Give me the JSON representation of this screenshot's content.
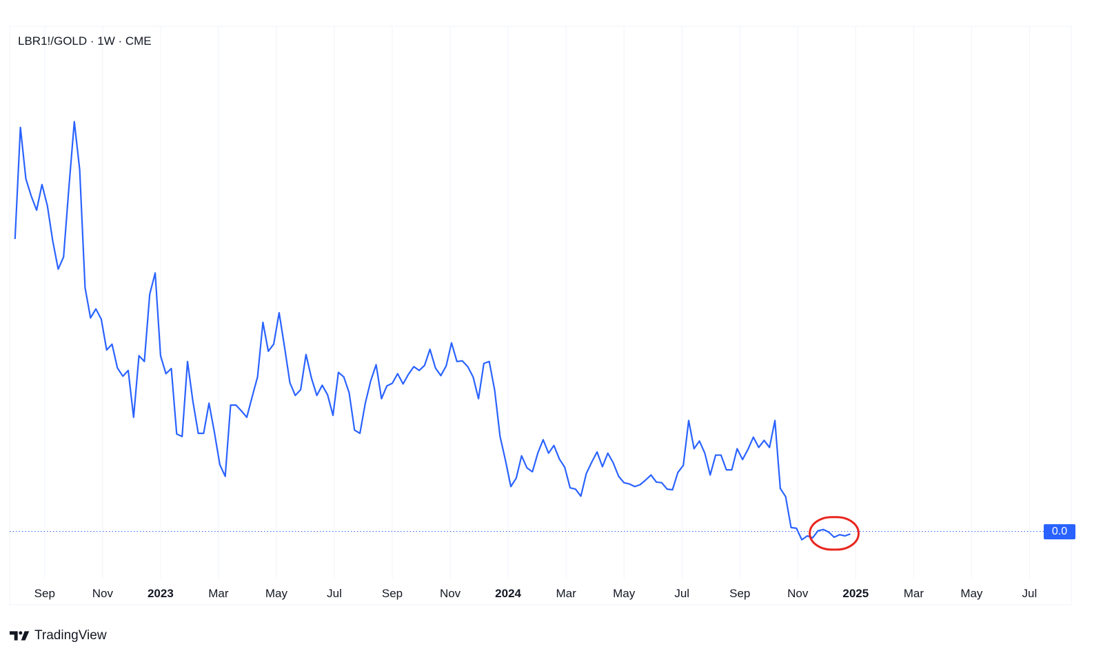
{
  "symbol_title": "LBR1!/GOLD · 1W · CME",
  "brand_name": "TradingView",
  "colors": {
    "line": "#2962ff",
    "grid": "#f0f3fa",
    "highlight": "#e8251e",
    "badge_bg": "#2962ff",
    "badge_text": "#ffffff"
  },
  "chart_data": {
    "type": "line",
    "title": "LBR1!/GOLD · 1W · CME",
    "xlabel": "",
    "ylabel": "",
    "y_axis_visible": false,
    "grid": "vertical",
    "x_tick_labels": [
      {
        "label": "Sep",
        "major": false
      },
      {
        "label": "Nov",
        "major": false
      },
      {
        "label": "2023",
        "major": true
      },
      {
        "label": "Mar",
        "major": false
      },
      {
        "label": "May",
        "major": false
      },
      {
        "label": "Jul",
        "major": false
      },
      {
        "label": "Sep",
        "major": false
      },
      {
        "label": "Nov",
        "major": false
      },
      {
        "label": "2024",
        "major": true
      },
      {
        "label": "Mar",
        "major": false
      },
      {
        "label": "May",
        "major": false
      },
      {
        "label": "Jul",
        "major": false
      },
      {
        "label": "Sep",
        "major": false
      },
      {
        "label": "Nov",
        "major": false
      },
      {
        "label": "2025",
        "major": true
      },
      {
        "label": "Mar",
        "major": false
      },
      {
        "label": "May",
        "major": false
      },
      {
        "label": "Jul",
        "major": false
      }
    ],
    "x_range": [
      -1,
      196
    ],
    "y_range": [
      -105,
      750
    ],
    "series": [
      {
        "name": "LBR1!/GOLD",
        "values": [
          431,
          605,
          525,
          498,
          476,
          516,
          483,
          428,
          384,
          403,
          512,
          614,
          539,
          355,
          308,
          322,
          306,
          258,
          267,
          230,
          217,
          226,
          153,
          249,
          240,
          345,
          378,
          249,
          221,
          229,
          127,
          123,
          240,
          178,
          128,
          128,
          175,
          129,
          79,
          61,
          172,
          172,
          163,
          153,
          185,
          216,
          301,
          256,
          267,
          316,
          263,
          207,
          187,
          196,
          251,
          214,
          187,
          203,
          188,
          156,
          223,
          216,
          191,
          133,
          128,
          175,
          210,
          235,
          182,
          202,
          206,
          221,
          205,
          220,
          232,
          226,
          234,
          259,
          230,
          218,
          233,
          269,
          240,
          241,
          232,
          216,
          182,
          237,
          240,
          195,
          123,
          86,
          45,
          58,
          93,
          74,
          68,
          97,
          118,
          97,
          109,
          88,
          75,
          43,
          41,
          30,
          65,
          83,
          99,
          76,
          97,
          82,
          61,
          51,
          49,
          45,
          48,
          55,
          63,
          52,
          51,
          41,
          40,
          67,
          78,
          148,
          104,
          116,
          97,
          63,
          94,
          94,
          71,
          71,
          104,
          87,
          103,
          122,
          106,
          117,
          106,
          148,
          42,
          29,
          -19,
          -20,
          -38,
          -32,
          -35,
          -24,
          -22,
          -26,
          -34,
          -30,
          -32,
          -29
        ]
      }
    ],
    "last_value_label": "0.0",
    "last_value_marker_y": -25,
    "highlight_start_index": 149
  }
}
